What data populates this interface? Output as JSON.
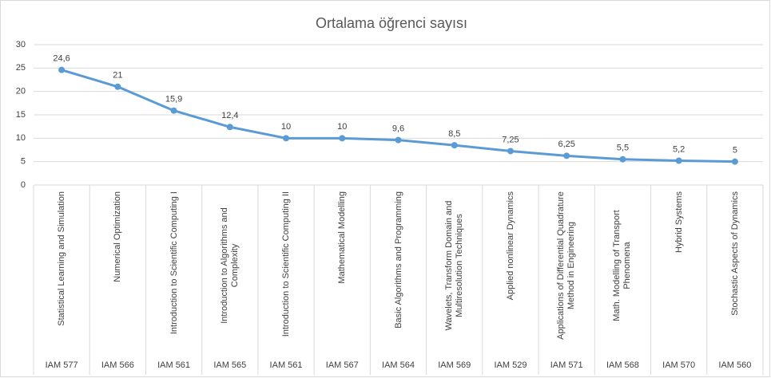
{
  "chart_data": {
    "type": "line",
    "title": "Ortalama öğrenci sayısı",
    "categories": [
      "Statistical Learning and Simulation",
      "Numerical Optimization",
      "Introduction to Scientific Computing I",
      "Introduction to Algorithms and Complexity",
      "Introduction to Scientific Computing II",
      "Mathematical Modelling",
      "Basic Algorithms and Programming",
      "Wavelets, Transform Domain and Multiresolution Techniques",
      "Applied nonlinear Dynamics",
      "Applications of Differential Quadrature Method in Engineering",
      "Math. Modelling of Transport Phenomena",
      "Hybrid Systems",
      "Stochastic Aspects of Dynamics"
    ],
    "category_codes": [
      "IAM 577",
      "IAM 566",
      "IAM 561",
      "IAM 565",
      "IAM 561",
      "IAM 567",
      "IAM 564",
      "IAM 569",
      "IAM 529",
      "IAM 571",
      "IAM 568",
      "IAM 570",
      "IAM 560"
    ],
    "values": [
      24.6,
      21,
      15.9,
      12.4,
      10,
      10,
      9.6,
      8.5,
      7.25,
      6.25,
      5.5,
      5.2,
      5
    ],
    "value_labels": [
      "24,6",
      "21",
      "15,9",
      "12,4",
      "10",
      "10",
      "9,6",
      "8,5",
      "7,25",
      "6,25",
      "5,5",
      "5,2",
      "5"
    ],
    "color": "#5b9bd5",
    "ylim": [
      0,
      30
    ],
    "yticks": [
      0,
      5,
      10,
      15,
      20,
      25,
      30
    ],
    "grid": true
  }
}
